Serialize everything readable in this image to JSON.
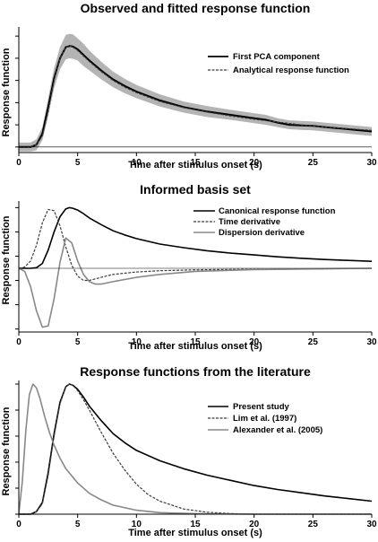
{
  "chart_data": [
    {
      "type": "line",
      "title": "Observed and fitted response function",
      "xlabel": "Time after stimulus onset (s)",
      "ylabel": "Response function",
      "xlim": [
        0,
        30
      ],
      "ylim": [
        -0.05,
        1.05
      ],
      "x_ticks": [
        0,
        5,
        10,
        15,
        20,
        25,
        30
      ],
      "y_ticks": [
        0,
        0.2,
        0.4,
        0.6,
        0.8,
        1.0
      ],
      "y_tick_labels_shown": false,
      "grid": false,
      "legend_position": "top-right",
      "series": [
        {
          "name": "First PCA component",
          "style": "solid black, with gray confidence band",
          "x": [
            0,
            1,
            1.5,
            2,
            2.5,
            3,
            3.5,
            4,
            4.3,
            4.6,
            5,
            5.5,
            6,
            7,
            8,
            9,
            10,
            12,
            14,
            16,
            18,
            20,
            21,
            22,
            23,
            24,
            25,
            26,
            28,
            30
          ],
          "y": [
            0.0,
            0.0,
            0.02,
            0.12,
            0.36,
            0.62,
            0.8,
            0.9,
            0.91,
            0.905,
            0.88,
            0.83,
            0.78,
            0.69,
            0.61,
            0.55,
            0.5,
            0.42,
            0.36,
            0.32,
            0.29,
            0.26,
            0.245,
            0.22,
            0.2,
            0.195,
            0.19,
            0.18,
            0.16,
            0.14
          ],
          "band_halfwidth": [
            0.04,
            0.04,
            0.05,
            0.06,
            0.08,
            0.09,
            0.1,
            0.11,
            0.11,
            0.11,
            0.1,
            0.1,
            0.09,
            0.08,
            0.07,
            0.065,
            0.06,
            0.055,
            0.05,
            0.05,
            0.045,
            0.045,
            0.045,
            0.04,
            0.04,
            0.04,
            0.04,
            0.04,
            0.04,
            0.04
          ]
        },
        {
          "name": "Analytical response function",
          "style": "dashed dark gray",
          "x": [
            0,
            1,
            1.5,
            2,
            2.5,
            3,
            3.5,
            4,
            4.3,
            4.6,
            5,
            5.5,
            6,
            7,
            8,
            9,
            10,
            12,
            14,
            16,
            18,
            20,
            22,
            24,
            26,
            28,
            30
          ],
          "y": [
            0.0,
            0.0,
            0.02,
            0.1,
            0.32,
            0.6,
            0.8,
            0.9,
            0.91,
            0.9,
            0.87,
            0.82,
            0.77,
            0.68,
            0.6,
            0.54,
            0.49,
            0.41,
            0.355,
            0.315,
            0.28,
            0.25,
            0.225,
            0.2,
            0.18,
            0.165,
            0.15
          ]
        }
      ]
    },
    {
      "type": "line",
      "title": "Informed basis set",
      "xlabel": "Time after stimulus onset (s)",
      "ylabel": "Response function",
      "xlim": [
        0,
        30
      ],
      "ylim": [
        -1.05,
        1.05
      ],
      "x_ticks": [
        0,
        5,
        10,
        15,
        20,
        25,
        30
      ],
      "y_ticks": [
        -1.0,
        -0.6,
        -0.2,
        0.2,
        0.6,
        1.0
      ],
      "y_tick_labels_shown": false,
      "grid": false,
      "legend_position": "top-right",
      "series": [
        {
          "name": "Canonical response function",
          "style": "solid black",
          "x": [
            0,
            1,
            1.5,
            2,
            2.5,
            3,
            3.5,
            4,
            4.3,
            4.6,
            5,
            5.5,
            6,
            7,
            8,
            9,
            10,
            12,
            14,
            16,
            18,
            20,
            22,
            24,
            26,
            28,
            30
          ],
          "y": [
            0.0,
            0.0,
            0.01,
            0.08,
            0.3,
            0.6,
            0.85,
            0.98,
            1.0,
            0.99,
            0.96,
            0.9,
            0.83,
            0.72,
            0.62,
            0.55,
            0.49,
            0.4,
            0.34,
            0.29,
            0.25,
            0.22,
            0.19,
            0.165,
            0.145,
            0.13,
            0.115
          ]
        },
        {
          "name": "Time derivative",
          "style": "dashed dark gray",
          "x": [
            0,
            0.5,
            1,
            1.5,
            2,
            2.5,
            3,
            3.5,
            4,
            4.5,
            5,
            5.5,
            6,
            7,
            8,
            10,
            12,
            15,
            20,
            25,
            30
          ],
          "y": [
            0.0,
            0.02,
            0.12,
            0.38,
            0.75,
            0.97,
            0.95,
            0.7,
            0.35,
            0.05,
            -0.13,
            -0.2,
            -0.2,
            -0.15,
            -0.1,
            -0.06,
            -0.04,
            -0.025,
            -0.015,
            -0.01,
            0.0
          ]
        },
        {
          "name": "Dispersion derivative",
          "style": "solid gray",
          "x": [
            0,
            0.5,
            1,
            1.5,
            2,
            2.5,
            3,
            3.5,
            4,
            4.5,
            5,
            5.5,
            6,
            6.5,
            7,
            8,
            10,
            12,
            15,
            20,
            25,
            30
          ],
          "y": [
            0.0,
            -0.05,
            -0.3,
            -0.7,
            -0.97,
            -0.95,
            -0.5,
            0.1,
            0.5,
            0.42,
            0.12,
            -0.1,
            -0.22,
            -0.26,
            -0.26,
            -0.22,
            -0.15,
            -0.1,
            -0.05,
            -0.02,
            -0.01,
            0.0
          ]
        }
      ]
    },
    {
      "type": "line",
      "title": "Response functions from the literature",
      "xlabel": "Time after stimulus onset (s)",
      "ylabel": "Response function",
      "xlim": [
        0,
        30
      ],
      "ylim": [
        0,
        1.0
      ],
      "x_ticks": [
        0,
        5,
        10,
        15,
        20,
        25,
        30
      ],
      "y_ticks": [
        0,
        0.2,
        0.4,
        0.6,
        0.8,
        1.0
      ],
      "y_tick_labels_shown": false,
      "grid": false,
      "legend_position": "top-right",
      "series": [
        {
          "name": "Present study",
          "style": "solid black",
          "x": [
            0,
            1,
            1.5,
            2,
            2.5,
            3,
            3.5,
            4,
            4.3,
            4.6,
            5,
            5.5,
            6,
            7,
            8,
            9,
            10,
            12,
            14,
            16,
            18,
            20,
            22,
            24,
            26,
            28,
            30
          ],
          "y": [
            0.0,
            0.0,
            0.02,
            0.09,
            0.32,
            0.62,
            0.86,
            0.98,
            1.0,
            0.99,
            0.96,
            0.9,
            0.83,
            0.72,
            0.62,
            0.55,
            0.49,
            0.41,
            0.35,
            0.3,
            0.26,
            0.22,
            0.19,
            0.165,
            0.14,
            0.12,
            0.1
          ]
        },
        {
          "name": "Lim et al. (1997)",
          "style": "dashed dark gray",
          "x": [
            0,
            1,
            1.5,
            2,
            2.5,
            3,
            3.5,
            4,
            4.3,
            4.6,
            5,
            5.5,
            6,
            7,
            8,
            9,
            10,
            11,
            12,
            14,
            16,
            18,
            20,
            25,
            30
          ],
          "y": [
            0.0,
            0.0,
            0.02,
            0.08,
            0.3,
            0.6,
            0.85,
            0.98,
            1.0,
            0.99,
            0.95,
            0.88,
            0.8,
            0.63,
            0.47,
            0.34,
            0.23,
            0.15,
            0.1,
            0.04,
            0.015,
            0.005,
            0.0,
            0.0,
            0.0
          ]
        },
        {
          "name": "Alexander et al. (2005)",
          "style": "solid gray",
          "x": [
            0,
            0.3,
            0.6,
            0.9,
            1.2,
            1.5,
            1.8,
            2.2,
            2.6,
            3,
            3.5,
            4,
            5,
            6,
            7,
            8,
            10,
            12,
            15,
            20,
            25,
            30
          ],
          "y": [
            0.0,
            0.25,
            0.65,
            0.92,
            1.0,
            0.97,
            0.89,
            0.75,
            0.63,
            0.53,
            0.43,
            0.35,
            0.24,
            0.16,
            0.11,
            0.07,
            0.03,
            0.012,
            0.004,
            0.0,
            0.0,
            0.0
          ]
        }
      ]
    }
  ],
  "colors": {
    "black": "#000000",
    "dark_gray": "#3c3c3c",
    "gray": "#888888",
    "band": "#b4b4b4"
  }
}
